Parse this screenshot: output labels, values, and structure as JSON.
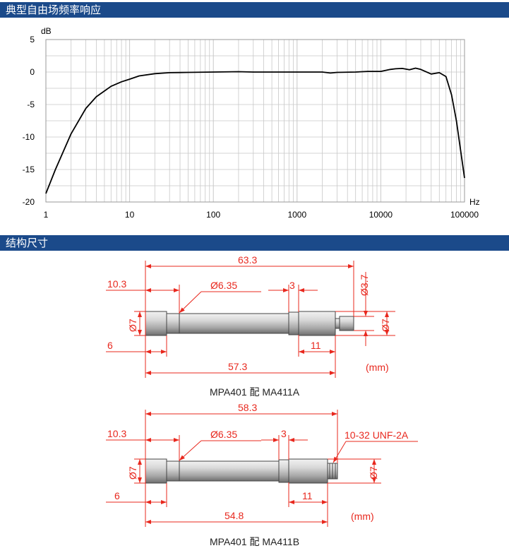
{
  "sections": {
    "frequency_response_title": "典型自由场频率响应",
    "dimensions_title": "结构尺寸"
  },
  "chart_data": {
    "type": "line",
    "title": "",
    "xlabel": "Hz",
    "ylabel": "dB",
    "x_scale": "log",
    "xlim": [
      1,
      100000
    ],
    "ylim": [
      -20,
      5
    ],
    "grid": true,
    "x_ticks": [
      1,
      10,
      100,
      1000,
      10000,
      100000
    ],
    "x_tick_labels": [
      "1",
      "10",
      "100",
      "1000",
      "10000",
      "100000"
    ],
    "y_ticks": [
      5,
      0,
      -5,
      -10,
      -15,
      -20
    ],
    "y_tick_labels": [
      "5",
      "0",
      "-5",
      "-10",
      "-15",
      "-20"
    ],
    "series": [
      {
        "color": "#000000",
        "x": [
          1,
          1.3,
          2,
          3,
          4,
          6,
          8,
          10,
          13,
          20,
          30,
          50,
          100,
          200,
          300,
          500,
          1000,
          2000,
          2500,
          3000,
          5000,
          7000,
          10000,
          13000,
          15000,
          18000,
          22000,
          26000,
          30000,
          40000,
          50000,
          60000,
          70000,
          80000,
          100000
        ],
        "y": [
          -18.7,
          -15,
          -9.5,
          -5.6,
          -3.8,
          -2.2,
          -1.5,
          -1.1,
          -0.6,
          -0.25,
          -0.1,
          -0.05,
          0,
          0.05,
          0,
          0,
          0,
          0,
          -0.15,
          -0.05,
          0,
          0.1,
          0.1,
          0.4,
          0.5,
          0.55,
          0.35,
          0.6,
          0.4,
          -0.3,
          -0.1,
          -0.7,
          -3.5,
          -7.5,
          -16.3
        ]
      }
    ]
  },
  "diagram1": {
    "dim_total": "63.3",
    "dim_left_cap": "10.3",
    "dim_diameter": "Ø6.35",
    "dim_groove": "3",
    "dim_small_dia": "Ø3.7",
    "dim_left_dia": "Ø7",
    "dim_right_dia": "Ø7",
    "dim_left_short": "6",
    "dim_right_short": "11",
    "dim_body": "57.3",
    "unit": "(mm)",
    "caption": "MPA401 配 MA411A"
  },
  "diagram2": {
    "dim_total": "58.3",
    "dim_left_cap": "10.3",
    "dim_diameter": "Ø6.35",
    "dim_groove": "3",
    "dim_thread": "10-32 UNF-2A",
    "dim_left_dia": "Ø7",
    "dim_right_dia": "Ø7",
    "dim_left_short": "6",
    "dim_right_short": "11",
    "dim_body": "54.8",
    "unit": "(mm)",
    "caption": "MPA401 配 MA411B"
  },
  "colors": {
    "header_bg": "#1b4a8a",
    "dimension_red": "#e8281e",
    "grid": "#c8c8c8"
  }
}
